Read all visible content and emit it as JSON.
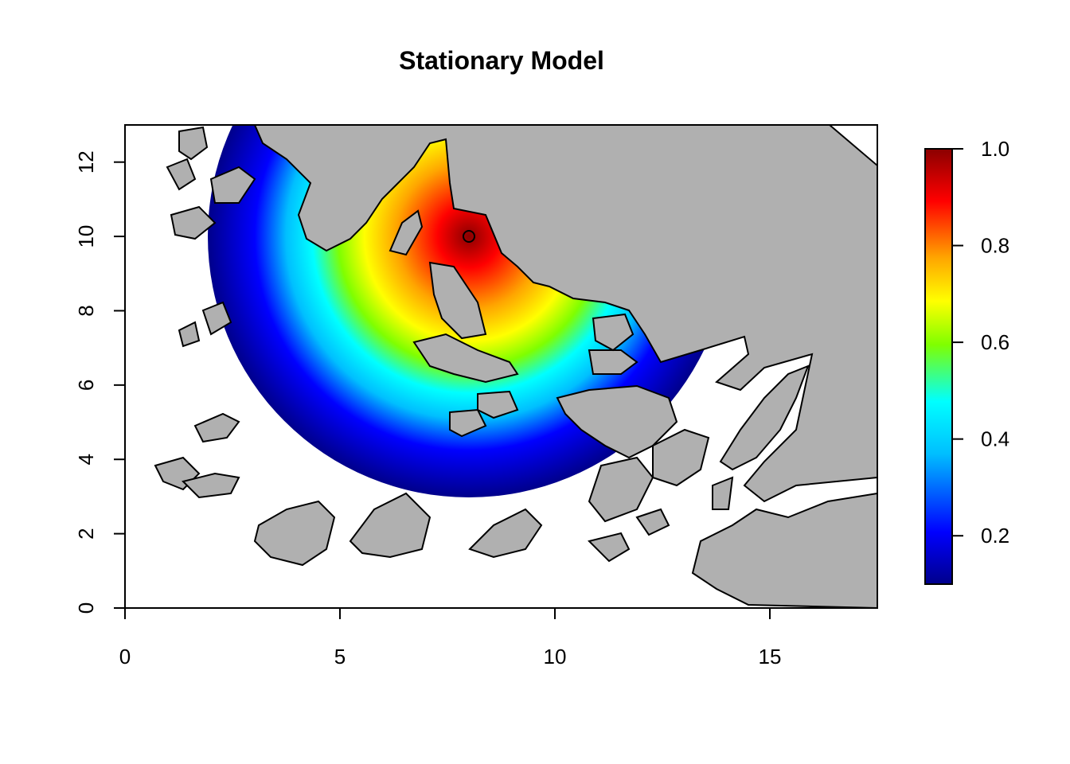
{
  "chart_data": {
    "type": "heatmap",
    "title": "Stationary Model",
    "xlabel": "",
    "ylabel": "",
    "xlim": [
      0,
      17.5
    ],
    "ylim": [
      0,
      13
    ],
    "x_ticks": [
      "0",
      "5",
      "10",
      "15"
    ],
    "y_ticks": [
      "0",
      "2",
      "4",
      "6",
      "8",
      "10",
      "12"
    ],
    "source_point": {
      "x": 8,
      "y": 10
    },
    "decay": {
      "max_value": 1.0,
      "min_value": 0.1,
      "radius": 7
    },
    "colorbar": {
      "range": [
        0.1,
        1.0
      ],
      "ticks": [
        "0.2",
        "0.4",
        "0.6",
        "0.8",
        "1.0"
      ],
      "palette": [
        "#00008B",
        "#0000FF",
        "#00BFFF",
        "#00FFFF",
        "#7FFF00",
        "#FFFF00",
        "#FFA500",
        "#FF0000",
        "#8B0000"
      ]
    },
    "land_color": "#B0B0B0",
    "water_color": "#FFFFFF",
    "grid": false,
    "legend": "colorbar-right"
  }
}
